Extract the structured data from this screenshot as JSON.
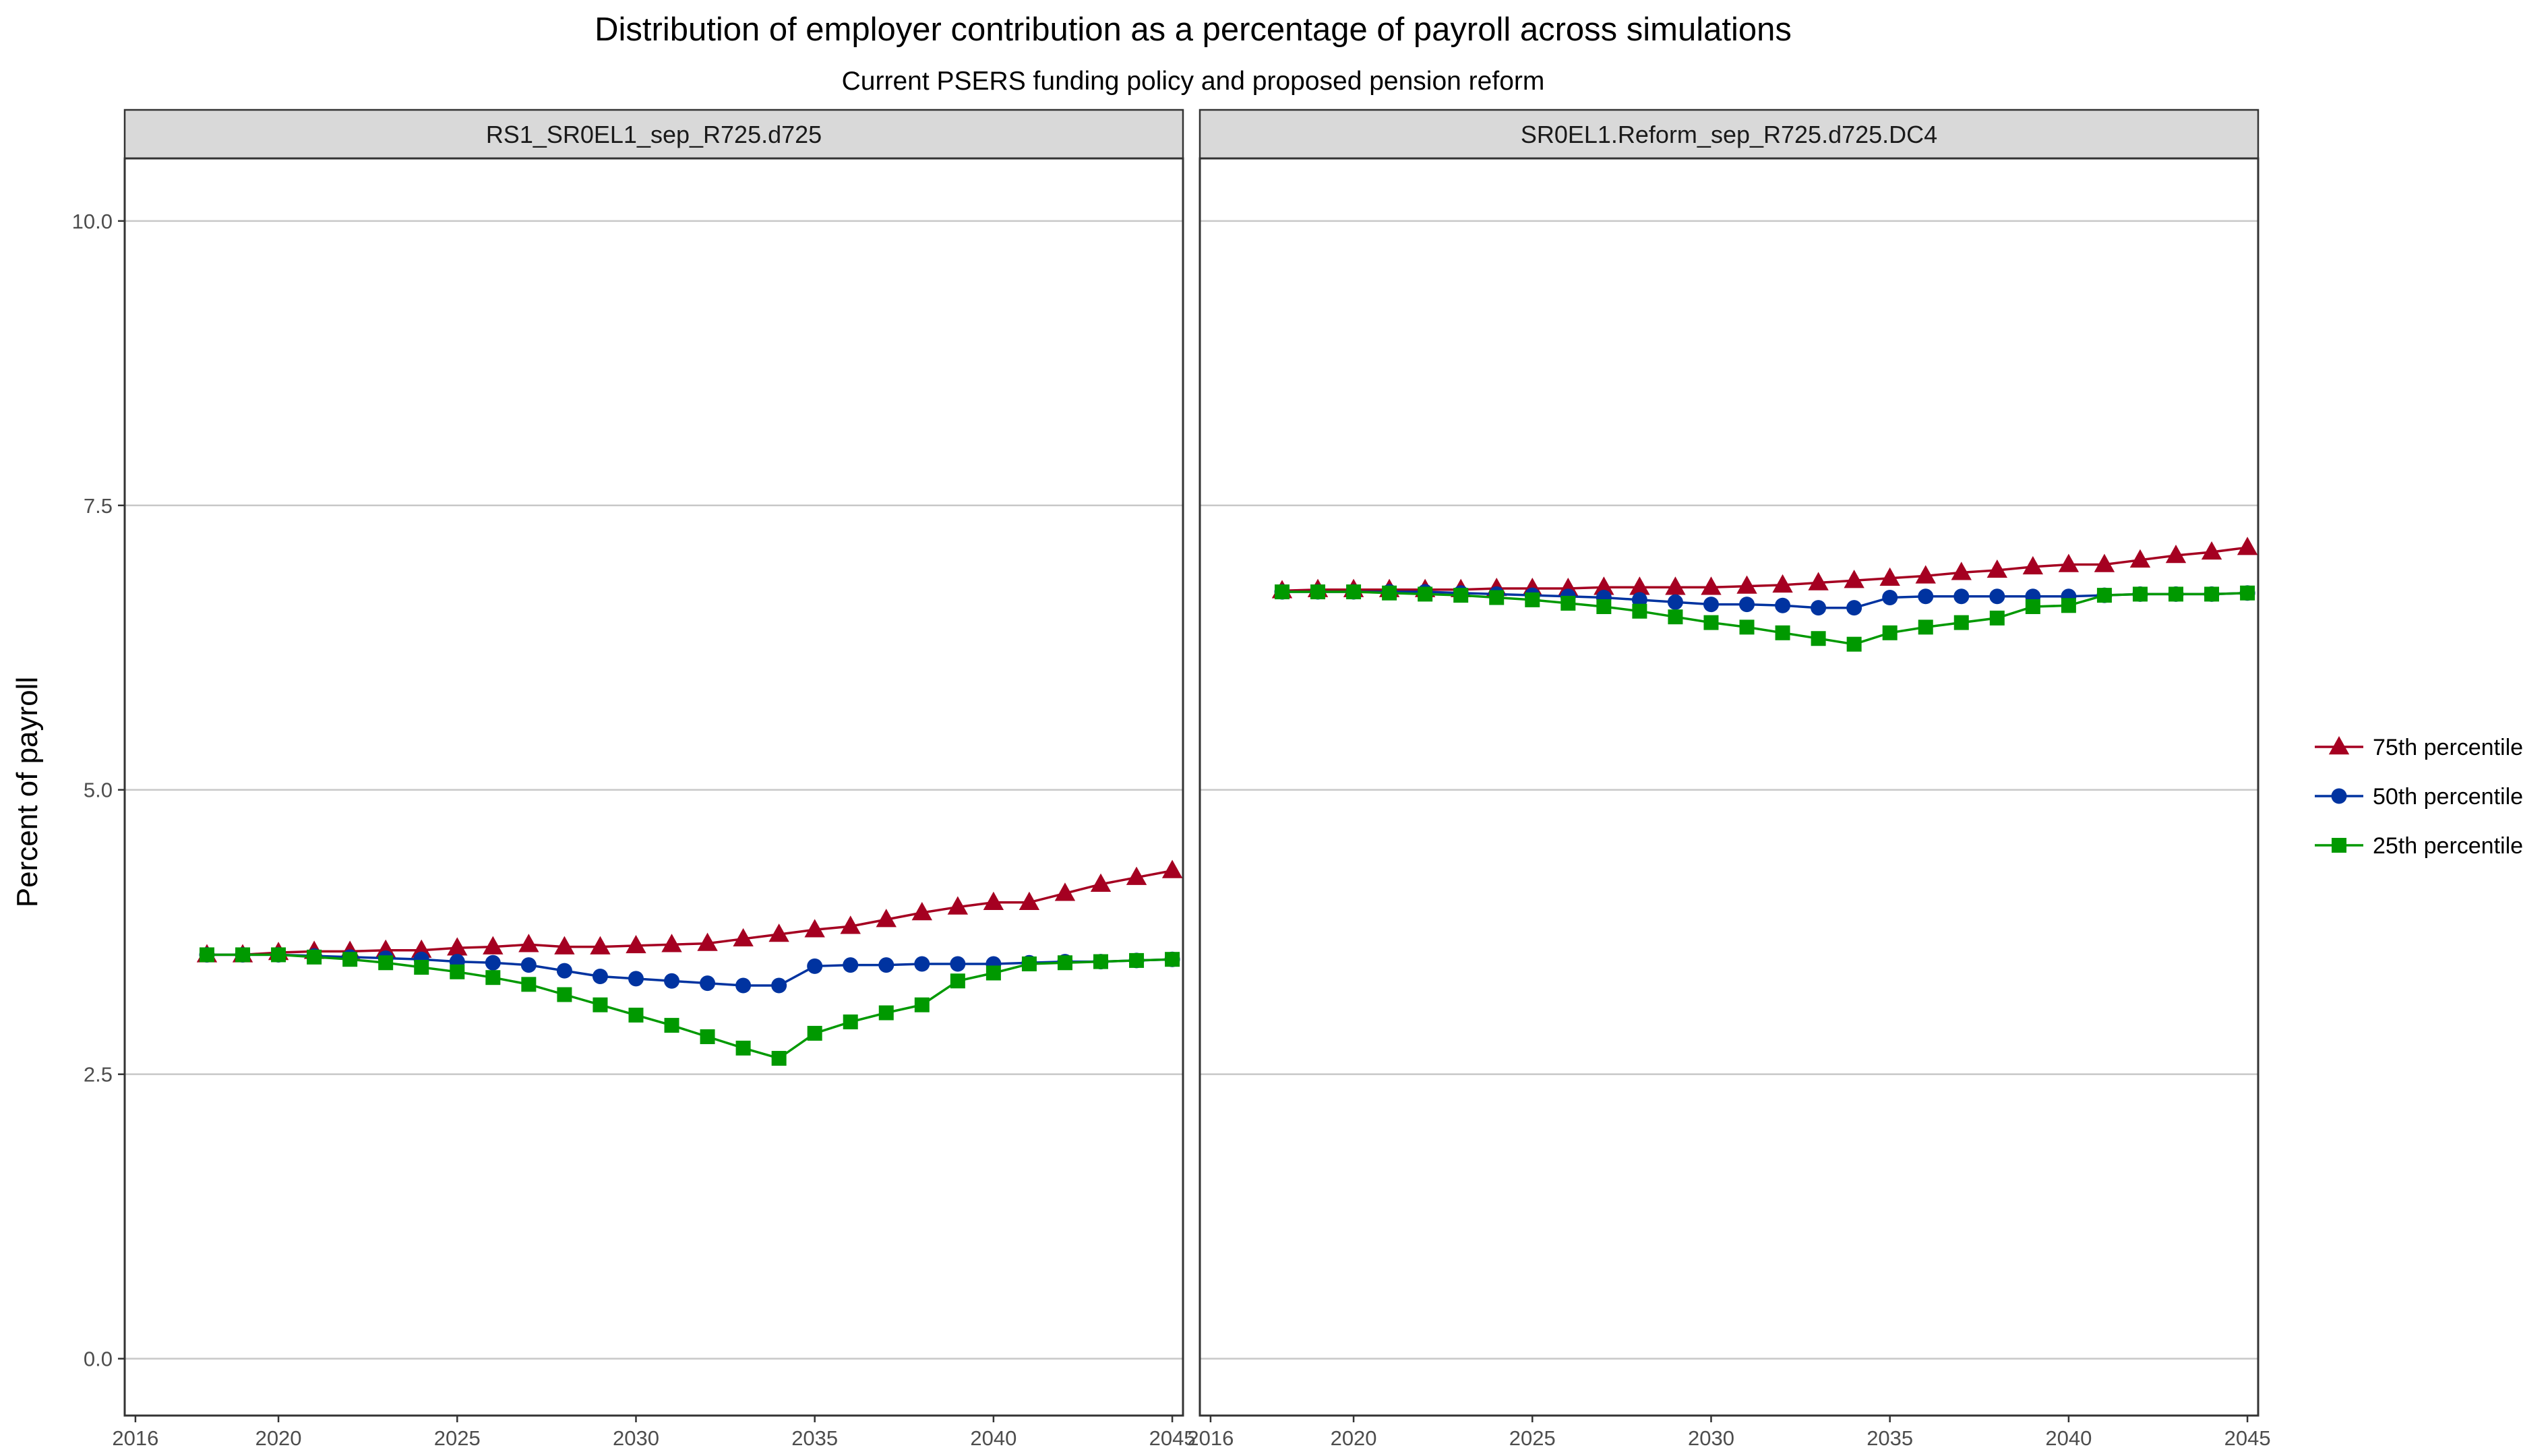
{
  "chart_data": {
    "type": "line",
    "title": "Distribution of employer contribution as a percentage of payroll across simulations",
    "subtitle": "Current PSERS funding policy and proposed pension reform",
    "ylabel": "Percent of payroll",
    "xlabel": "",
    "xlim": [
      2015.7,
      2045.3
    ],
    "ylim": [
      -0.5,
      10.55
    ],
    "x_ticks": [
      2016,
      2020,
      2025,
      2030,
      2035,
      2040,
      2045
    ],
    "y_ticks": [
      0.0,
      2.5,
      5.0,
      7.5,
      10.0
    ],
    "y_tick_labels": [
      "0.0",
      "2.5",
      "5.0",
      "7.5",
      "10.0"
    ],
    "grid": "horizontal",
    "legend_position": "right",
    "series_styles": [
      {
        "name": "75th percentile",
        "color": "#a50021",
        "marker": "triangle"
      },
      {
        "name": "50th percentile",
        "color": "#0033a0",
        "marker": "circle"
      },
      {
        "name": "25th percentile",
        "color": "#009900",
        "marker": "square"
      }
    ],
    "years": [
      2018,
      2019,
      2020,
      2021,
      2022,
      2023,
      2024,
      2025,
      2026,
      2027,
      2028,
      2029,
      2030,
      2031,
      2032,
      2033,
      2034,
      2035,
      2036,
      2037,
      2038,
      2039,
      2040,
      2041,
      2042,
      2043,
      2044,
      2045
    ],
    "panels": [
      {
        "label": "RS1_SR0EL1_sep_R725.d725",
        "series": [
          {
            "name": "75th percentile",
            "values": [
              3.55,
              3.55,
              3.57,
              3.58,
              3.58,
              3.59,
              3.59,
              3.61,
              3.62,
              3.64,
              3.62,
              3.62,
              3.63,
              3.64,
              3.65,
              3.69,
              3.73,
              3.77,
              3.8,
              3.86,
              3.92,
              3.97,
              4.01,
              4.01,
              4.09,
              4.17,
              4.23,
              4.29
            ]
          },
          {
            "name": "50th percentile",
            "values": [
              3.55,
              3.55,
              3.55,
              3.54,
              3.53,
              3.52,
              3.51,
              3.49,
              3.48,
              3.46,
              3.41,
              3.36,
              3.34,
              3.32,
              3.3,
              3.28,
              3.28,
              3.45,
              3.46,
              3.46,
              3.47,
              3.47,
              3.47,
              3.48,
              3.49,
              3.49,
              3.5,
              3.51
            ]
          },
          {
            "name": "25th percentile",
            "values": [
              3.55,
              3.55,
              3.55,
              3.53,
              3.51,
              3.48,
              3.44,
              3.4,
              3.35,
              3.29,
              3.2,
              3.11,
              3.02,
              2.93,
              2.83,
              2.73,
              2.64,
              2.86,
              2.96,
              3.04,
              3.11,
              3.32,
              3.39,
              3.47,
              3.48,
              3.49,
              3.5,
              3.51
            ]
          }
        ]
      },
      {
        "label": "SR0EL1.Reform_sep_R725.d725.DC4",
        "series": [
          {
            "name": "75th percentile",
            "values": [
              6.75,
              6.76,
              6.76,
              6.76,
              6.76,
              6.76,
              6.77,
              6.77,
              6.77,
              6.78,
              6.78,
              6.78,
              6.78,
              6.79,
              6.8,
              6.82,
              6.84,
              6.86,
              6.88,
              6.91,
              6.93,
              6.96,
              6.98,
              6.98,
              7.02,
              7.06,
              7.09,
              7.13
            ]
          },
          {
            "name": "50th percentile",
            "values": [
              6.74,
              6.74,
              6.74,
              6.74,
              6.74,
              6.73,
              6.72,
              6.71,
              6.7,
              6.69,
              6.67,
              6.65,
              6.63,
              6.63,
              6.62,
              6.6,
              6.6,
              6.69,
              6.7,
              6.7,
              6.7,
              6.7,
              6.7,
              6.71,
              6.72,
              6.72,
              6.72,
              6.73
            ]
          },
          {
            "name": "25th percentile",
            "values": [
              6.74,
              6.74,
              6.74,
              6.73,
              6.72,
              6.71,
              6.69,
              6.67,
              6.64,
              6.61,
              6.57,
              6.52,
              6.47,
              6.43,
              6.38,
              6.33,
              6.28,
              6.38,
              6.43,
              6.47,
              6.51,
              6.61,
              6.62,
              6.71,
              6.72,
              6.72,
              6.72,
              6.73
            ]
          }
        ]
      }
    ]
  }
}
